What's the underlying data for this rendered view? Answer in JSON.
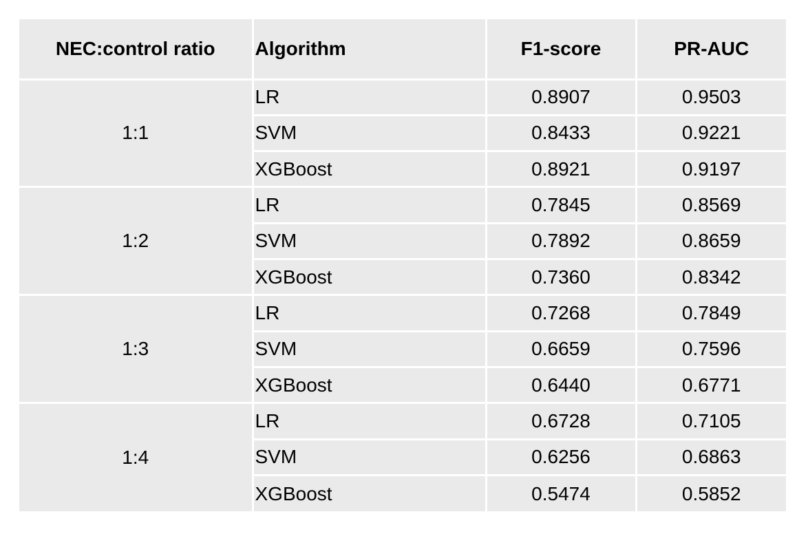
{
  "table": {
    "headers": [
      "NEC:control ratio",
      "Algorithm",
      "F1-score",
      "PR-AUC"
    ],
    "groups": [
      {
        "ratio": "1:1",
        "rows": [
          {
            "algorithm": "LR",
            "f1": "0.8907",
            "prauc": "0.9503"
          },
          {
            "algorithm": "SVM",
            "f1": "0.8433",
            "prauc": "0.9221"
          },
          {
            "algorithm": "XGBoost",
            "f1": "0.8921",
            "prauc": "0.9197"
          }
        ]
      },
      {
        "ratio": "1:2",
        "rows": [
          {
            "algorithm": "LR",
            "f1": "0.7845",
            "prauc": "0.8569"
          },
          {
            "algorithm": "SVM",
            "f1": "0.7892",
            "prauc": "0.8659"
          },
          {
            "algorithm": "XGBoost",
            "f1": "0.7360",
            "prauc": "0.8342"
          }
        ]
      },
      {
        "ratio": "1:3",
        "rows": [
          {
            "algorithm": "LR",
            "f1": "0.7268",
            "prauc": "0.7849"
          },
          {
            "algorithm": "SVM",
            "f1": "0.6659",
            "prauc": "0.7596"
          },
          {
            "algorithm": "XGBoost",
            "f1": "0.6440",
            "prauc": "0.6771"
          }
        ]
      },
      {
        "ratio": "1:4",
        "rows": [
          {
            "algorithm": "LR",
            "f1": "0.6728",
            "prauc": "0.7105"
          },
          {
            "algorithm": "SVM",
            "f1": "0.6256",
            "prauc": "0.6863"
          },
          {
            "algorithm": "XGBoost",
            "f1": "0.5474",
            "prauc": "0.5852"
          }
        ]
      }
    ],
    "colors": {
      "cell_background": "#eaeaea",
      "grid_lines": "#ffffff",
      "text": "#000000"
    }
  }
}
